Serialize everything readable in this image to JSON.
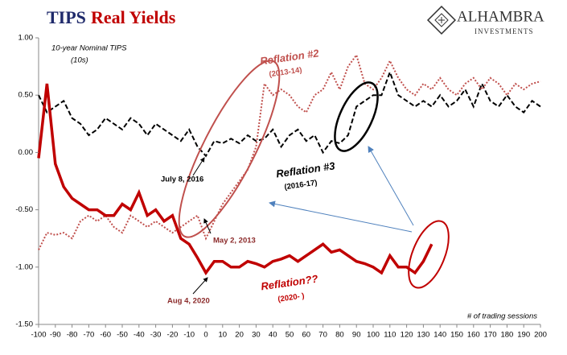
{
  "chart_data": {
    "type": "line",
    "title_parts": [
      "TIPS",
      "Real Yields"
    ],
    "logo": [
      "ALHAMBRA",
      "INVESTMENTS"
    ],
    "xlabel": "# of trading sessions",
    "xlim": [
      -100,
      200
    ],
    "xticks": [
      -100,
      -90,
      -80,
      -70,
      -60,
      -50,
      -40,
      -30,
      -20,
      -10,
      0,
      10,
      20,
      30,
      40,
      50,
      60,
      70,
      80,
      90,
      100,
      110,
      120,
      130,
      140,
      150,
      160,
      170,
      180,
      190,
      200
    ],
    "ylim": [
      -1.5,
      1.0
    ],
    "yticks": [
      {
        "value": 1.0,
        "label": "1.00"
      },
      {
        "value": 0.5,
        "label": "0.50"
      },
      {
        "value": 0,
        "label": "0.00"
      },
      {
        "value": -0.5,
        "label": "-0.50"
      },
      {
        "value": -1.0,
        "label": "-1.00"
      },
      {
        "value": -1.5,
        "label": "-1.50"
      }
    ],
    "annotations": [
      "10-year Nominal TIPS",
      "(10s)",
      "July 8, 2016",
      "May 2, 2013",
      "Aug 4, 2020"
    ],
    "series": [
      {
        "name": "Reflation #3",
        "period": "(2016-17)",
        "color": "#000000",
        "style": "dashed",
        "x": [
          -100,
          -95,
          -90,
          -85,
          -80,
          -75,
          -70,
          -65,
          -60,
          -55,
          -50,
          -45,
          -40,
          -35,
          -30,
          -25,
          -20,
          -15,
          -10,
          -5,
          0,
          5,
          10,
          15,
          20,
          25,
          30,
          35,
          40,
          45,
          50,
          55,
          60,
          65,
          70,
          75,
          80,
          85,
          90,
          95,
          100,
          105,
          110,
          115,
          120,
          125,
          130,
          135,
          140,
          145,
          150,
          155,
          160,
          165,
          170,
          175,
          180,
          185,
          190,
          195,
          200
        ],
        "values": [
          0.5,
          0.35,
          0.4,
          0.45,
          0.3,
          0.25,
          0.15,
          0.2,
          0.3,
          0.25,
          0.2,
          0.3,
          0.25,
          0.15,
          0.25,
          0.2,
          0.15,
          0.1,
          0.2,
          0.05,
          -0.03,
          0.1,
          0.08,
          0.12,
          0.08,
          0.15,
          0.1,
          0.12,
          0.2,
          0.05,
          0.15,
          0.2,
          0.1,
          0.15,
          0.0,
          0.1,
          0.08,
          0.15,
          0.4,
          0.45,
          0.5,
          0.5,
          0.7,
          0.5,
          0.45,
          0.4,
          0.45,
          0.4,
          0.5,
          0.4,
          0.45,
          0.55,
          0.4,
          0.6,
          0.45,
          0.4,
          0.5,
          0.4,
          0.35,
          0.45,
          0.4
        ]
      },
      {
        "name": "Reflation #2",
        "period": "(2013-14)",
        "color": "#c0504d",
        "style": "dotted",
        "x": [
          -100,
          -95,
          -90,
          -85,
          -80,
          -75,
          -70,
          -65,
          -60,
          -55,
          -50,
          -45,
          -40,
          -35,
          -30,
          -25,
          -20,
          -15,
          -10,
          -5,
          0,
          5,
          10,
          15,
          20,
          25,
          30,
          35,
          40,
          45,
          50,
          55,
          60,
          65,
          70,
          75,
          80,
          85,
          90,
          95,
          100,
          105,
          110,
          115,
          120,
          125,
          130,
          135,
          140,
          145,
          150,
          155,
          160,
          165,
          170,
          175,
          180,
          185,
          190,
          195,
          200
        ],
        "values": [
          -0.85,
          -0.7,
          -0.72,
          -0.7,
          -0.75,
          -0.6,
          -0.55,
          -0.6,
          -0.55,
          -0.65,
          -0.7,
          -0.55,
          -0.6,
          -0.65,
          -0.6,
          -0.65,
          -0.7,
          -0.65,
          -0.6,
          -0.55,
          -0.75,
          -0.6,
          -0.45,
          -0.35,
          -0.25,
          -0.15,
          0.05,
          0.6,
          0.5,
          0.55,
          0.5,
          0.4,
          0.35,
          0.5,
          0.55,
          0.7,
          0.55,
          0.75,
          0.85,
          0.6,
          0.55,
          0.65,
          0.8,
          0.65,
          0.55,
          0.5,
          0.6,
          0.55,
          0.65,
          0.55,
          0.5,
          0.6,
          0.65,
          0.55,
          0.65,
          0.6,
          0.5,
          0.6,
          0.55,
          0.6,
          0.62
        ]
      },
      {
        "name": "Reflation??",
        "period": "(2020- )",
        "color": "#c00000",
        "style": "solid",
        "x": [
          -100,
          -95,
          -90,
          -85,
          -80,
          -75,
          -70,
          -65,
          -60,
          -55,
          -50,
          -45,
          -40,
          -35,
          -30,
          -25,
          -20,
          -15,
          -10,
          -5,
          0,
          5,
          10,
          15,
          20,
          25,
          30,
          35,
          40,
          45,
          50,
          55,
          60,
          65,
          70,
          75,
          80,
          85,
          90,
          95,
          100,
          105,
          110,
          115,
          120,
          125,
          130,
          135
        ],
        "values": [
          -0.05,
          0.6,
          -0.1,
          -0.3,
          -0.4,
          -0.45,
          -0.5,
          -0.5,
          -0.55,
          -0.55,
          -0.45,
          -0.5,
          -0.35,
          -0.55,
          -0.5,
          -0.6,
          -0.55,
          -0.75,
          -0.8,
          -0.92,
          -1.05,
          -0.95,
          -0.95,
          -1.0,
          -1.0,
          -0.95,
          -0.97,
          -1.0,
          -0.95,
          -0.93,
          -0.9,
          -0.95,
          -0.9,
          -0.85,
          -0.8,
          -0.87,
          -0.85,
          -0.9,
          -0.95,
          -0.97,
          -1.0,
          -1.05,
          -0.9,
          -1.0,
          -1.0,
          -1.05,
          -0.95,
          -0.8
        ]
      }
    ]
  }
}
